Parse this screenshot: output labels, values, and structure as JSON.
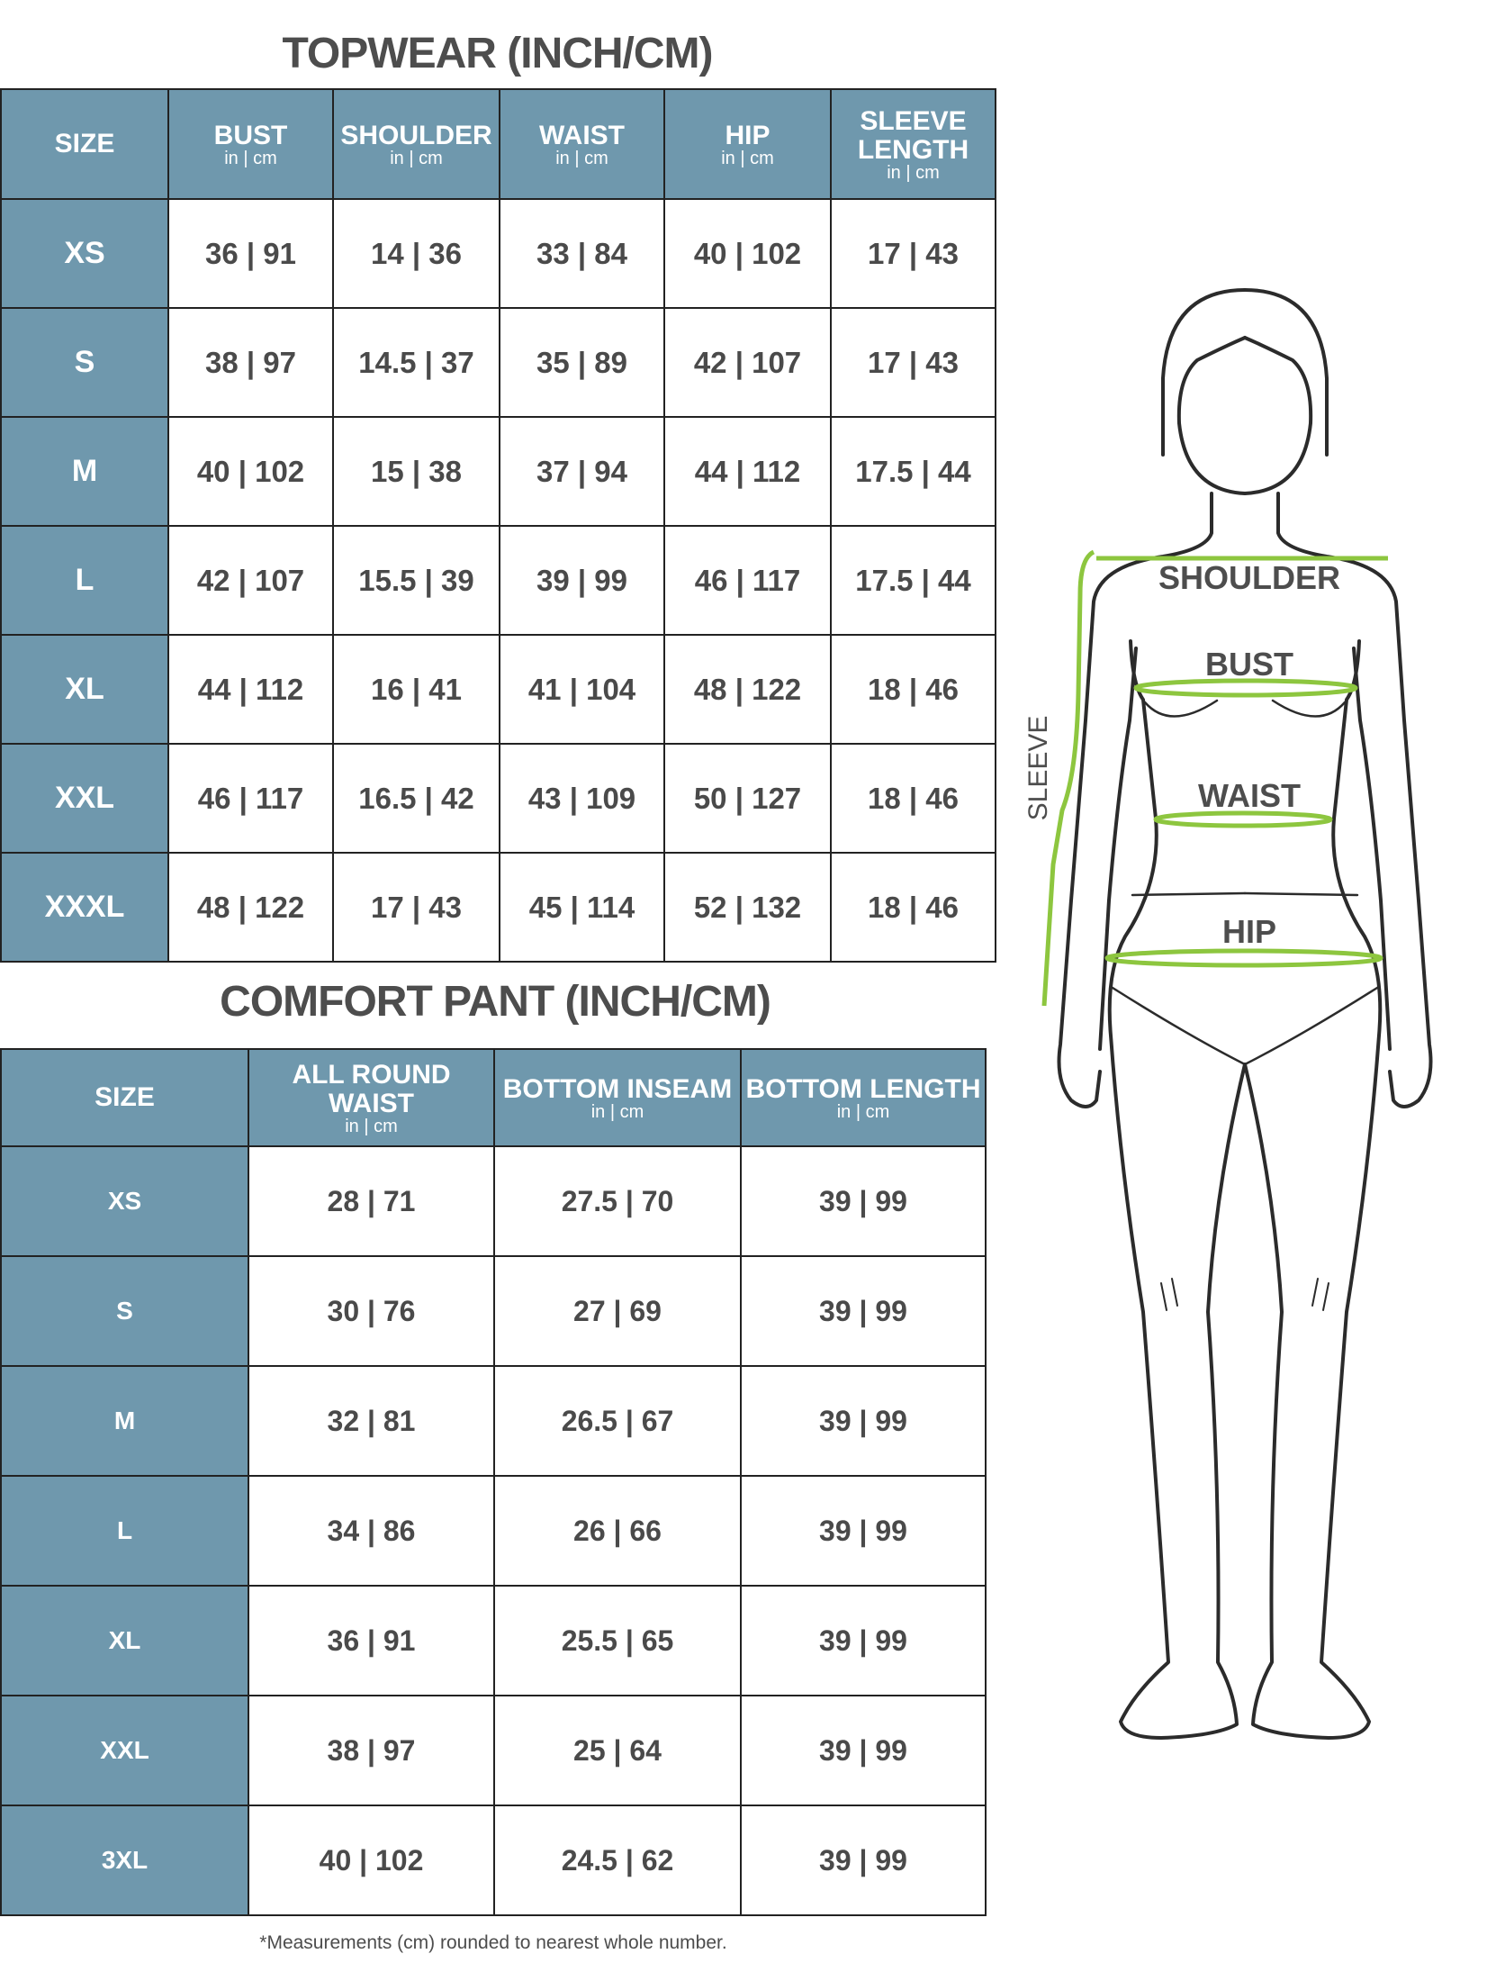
{
  "topwear": {
    "title": "TOPWEAR (INCH/CM)",
    "headers": [
      {
        "label": "SIZE",
        "sub": ""
      },
      {
        "label": "BUST",
        "sub": "in | cm"
      },
      {
        "label": "SHOULDER",
        "sub": "in | cm"
      },
      {
        "label": "WAIST",
        "sub": "in | cm"
      },
      {
        "label": "HIP",
        "sub": "in | cm"
      },
      {
        "label": "SLEEVE LENGTH",
        "sub": "in | cm"
      }
    ],
    "rows": [
      [
        "XS",
        "36 | 91",
        "14 | 36",
        "33 | 84",
        "40 | 102",
        "17 | 43"
      ],
      [
        "S",
        "38 | 97",
        "14.5 | 37",
        "35 | 89",
        "42 | 107",
        "17 | 43"
      ],
      [
        "M",
        "40 | 102",
        "15 | 38",
        "37 | 94",
        "44 | 112",
        "17.5 | 44"
      ],
      [
        "L",
        "42 | 107",
        "15.5 | 39",
        "39 | 99",
        "46 | 117",
        "17.5 | 44"
      ],
      [
        "XL",
        "44 | 112",
        "16 | 41",
        "41 | 104",
        "48 | 122",
        "18 | 46"
      ],
      [
        "XXL",
        "46 | 117",
        "16.5 | 42",
        "43 | 109",
        "50 | 127",
        "18 | 46"
      ],
      [
        "XXXL",
        "48 | 122",
        "17 | 43",
        "45 | 114",
        "52 | 132",
        "18 | 46"
      ]
    ]
  },
  "comfort_pant": {
    "title": "COMFORT PANT (INCH/CM)",
    "headers": [
      {
        "label": "SIZE",
        "sub": ""
      },
      {
        "label": "ALL ROUND WAIST",
        "sub": "in | cm"
      },
      {
        "label": "BOTTOM INSEAM",
        "sub": "in | cm"
      },
      {
        "label": "BOTTOM LENGTH",
        "sub": "in | cm"
      }
    ],
    "rows": [
      [
        "XS",
        "28 | 71",
        "27.5 | 70",
        "39 | 99"
      ],
      [
        "S",
        "30 | 76",
        "27 | 69",
        "39 | 99"
      ],
      [
        "M",
        "32 | 81",
        "26.5 | 67",
        "39 | 99"
      ],
      [
        "L",
        "34 | 86",
        "26 | 66",
        "39 | 99"
      ],
      [
        "XL",
        "36 | 91",
        "25.5 | 65",
        "39 | 99"
      ],
      [
        "XXL",
        "38 | 97",
        "25 | 64",
        "39 | 99"
      ],
      [
        "3XL",
        "40 | 102",
        "24.5 | 62",
        "39 | 99"
      ]
    ]
  },
  "footnote": "*Measurements (cm) rounded to nearest whole number.",
  "figure": {
    "labels": {
      "shoulder": "SHOULDER",
      "bust": "BUST",
      "waist": "WAIST",
      "hip": "HIP",
      "sleeve": "SLEEVE"
    }
  },
  "colors": {
    "header_bg": "#6f98ad",
    "measure_line": "#8dc63f",
    "text": "#4a4a4a"
  }
}
